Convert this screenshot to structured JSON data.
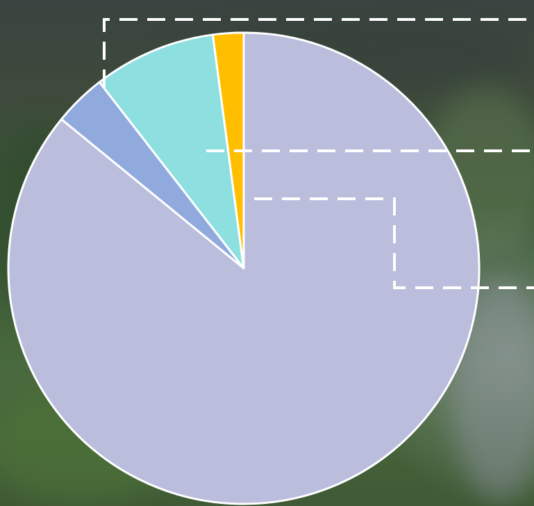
{
  "chart_data": {
    "type": "pie",
    "title": "",
    "legend": "none",
    "slices": [
      {
        "value": 85.9,
        "color": "#bbbddd"
      },
      {
        "value": 3.6,
        "color": "#91aade"
      },
      {
        "value": 8.4,
        "color": "#8edfe0"
      },
      {
        "value": 2.1,
        "color": "#ffbf00"
      }
    ],
    "slice_border_color": "#ffffff",
    "callout_line_color": "#ffffff",
    "start_angle_deg": 0,
    "direction": "clockwise"
  },
  "background": {
    "description_colors": [
      "#2c3a2e",
      "#3b5a37",
      "#567049",
      "#6f7a70"
    ]
  }
}
